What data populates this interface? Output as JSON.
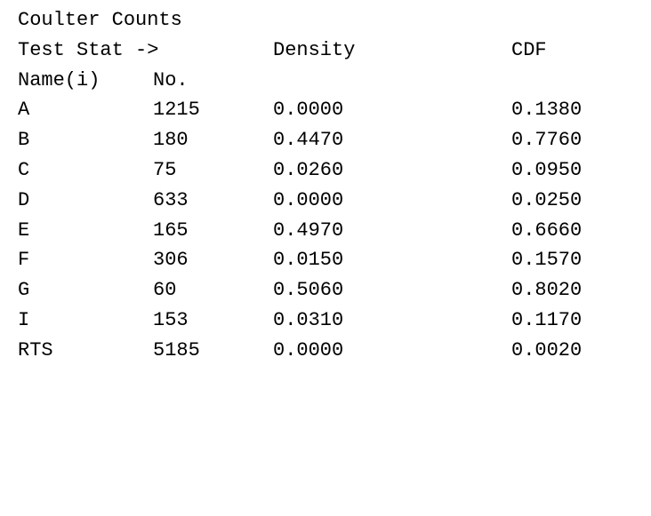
{
  "title": "Coulter Counts",
  "header_row": {
    "label": "Test Stat ->",
    "density": "Density",
    "cdf": "CDF"
  },
  "sub_header": {
    "name": "Name(i)",
    "number": "No."
  },
  "rows": [
    {
      "name": "A",
      "number": "1215",
      "density": "0.0000",
      "cdf": "0.1380"
    },
    {
      "name": "B",
      "number": "180",
      "density": "0.4470",
      "cdf": "0.7760"
    },
    {
      "name": "C",
      "number": "75",
      "density": "0.0260",
      "cdf": "0.0950"
    },
    {
      "name": "D",
      "number": "633",
      "density": "0.0000",
      "cdf": "0.0250"
    },
    {
      "name": "E",
      "number": "165",
      "density": "0.4970",
      "cdf": "0.6660"
    },
    {
      "name": "F",
      "number": "306",
      "density": "0.0150",
      "cdf": "0.1570"
    },
    {
      "name": "G",
      "number": "60",
      "density": "0.5060",
      "cdf": "0.8020"
    },
    {
      "name": "I",
      "number": "153",
      "density": "0.0310",
      "cdf": "0.1170"
    },
    {
      "name": "RTS",
      "number": "5185",
      "density": "0.0000",
      "cdf": "0.0020"
    }
  ]
}
